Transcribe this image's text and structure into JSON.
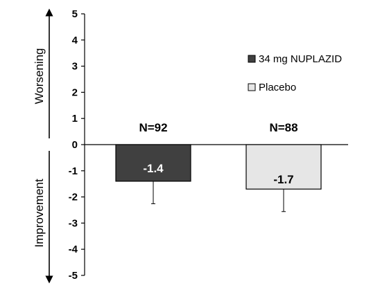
{
  "chart_data": {
    "type": "bar",
    "categories": [
      "34 mg NUPLAZID",
      "Placebo"
    ],
    "values": [
      -1.4,
      -1.7
    ],
    "error_bars": [
      0.86,
      0.86
    ],
    "value_labels": [
      "-1.4",
      "-1.7"
    ],
    "n_labels": [
      "N=92",
      "N=88"
    ],
    "bar_colors": [
      "#404040",
      "#e6e6e6"
    ],
    "ylim": [
      -5,
      5
    ],
    "y_ticks": [
      "-5",
      "-4",
      "-3",
      "-2",
      "-1",
      "0",
      "1",
      "2",
      "3",
      "4",
      "5"
    ],
    "axis_side_labels": {
      "upper": "Worsening",
      "lower": "Improvement"
    },
    "legend": [
      {
        "label": "34 mg NUPLAZID",
        "color": "#404040"
      },
      {
        "label": "Placebo",
        "color": "#e6e6e6"
      }
    ],
    "legend_position": "right",
    "grid": false,
    "title": "",
    "xlabel": "",
    "ylabel": ""
  }
}
